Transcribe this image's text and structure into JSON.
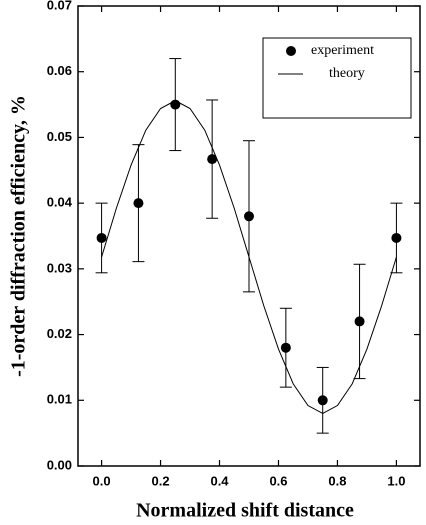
{
  "chart_data": {
    "type": "scatter",
    "x_label": "Normalized shift distance",
    "y_label": "-1-order diffraction efficiency, %",
    "xlim": [
      -0.08,
      1.08
    ],
    "ylim": [
      0,
      0.07
    ],
    "xticks": [
      {
        "value": 0,
        "label": "0.0"
      },
      {
        "value": 0.2,
        "label": "0.2"
      },
      {
        "value": 0.4,
        "label": "0.4"
      },
      {
        "value": 0.6,
        "label": "0.6"
      },
      {
        "value": 0.8,
        "label": "0.8"
      },
      {
        "value": 1,
        "label": "1.0"
      }
    ],
    "yticks": [
      {
        "value": 0,
        "label": "0.00"
      },
      {
        "value": 0.01,
        "label": "0.01"
      },
      {
        "value": 0.02,
        "label": "0.02"
      },
      {
        "value": 0.03,
        "label": "0.03"
      },
      {
        "value": 0.04,
        "label": "0.04"
      },
      {
        "value": 0.05,
        "label": "0.05"
      },
      {
        "value": 0.06,
        "label": "0.06"
      },
      {
        "value": 0.07,
        "label": "0.07"
      }
    ],
    "legend": "upper right",
    "series": [
      {
        "name": "experiment",
        "mode": "markers",
        "color": "#000000",
        "x": [
          0,
          0.125,
          0.25,
          0.375,
          0.5,
          0.625,
          0.75,
          0.875,
          1
        ],
        "values": [
          0.0347,
          0.04,
          0.055,
          0.0467,
          0.038,
          0.018,
          0.01,
          0.022,
          0.0347
        ],
        "errors": [
          0.0053,
          0.0089,
          0.007,
          0.009,
          0.0115,
          0.006,
          0.005,
          0.0087,
          0.0053
        ]
      },
      {
        "name": "theory",
        "mode": "line",
        "color": "#000000",
        "x": [
          0,
          0.05,
          0.1,
          0.15,
          0.2,
          0.25,
          0.3,
          0.35,
          0.4,
          0.45,
          0.5,
          0.55,
          0.6,
          0.65,
          0.7,
          0.75,
          0.8,
          0.85,
          0.9,
          0.95,
          1
        ],
        "values": [
          0.0318,
          0.0392,
          0.0458,
          0.0511,
          0.0544,
          0.0556,
          0.0544,
          0.0511,
          0.0458,
          0.0392,
          0.0318,
          0.0244,
          0.0178,
          0.0125,
          0.0092,
          0.008,
          0.0092,
          0.0125,
          0.0178,
          0.0244,
          0.0318
        ]
      }
    ]
  }
}
